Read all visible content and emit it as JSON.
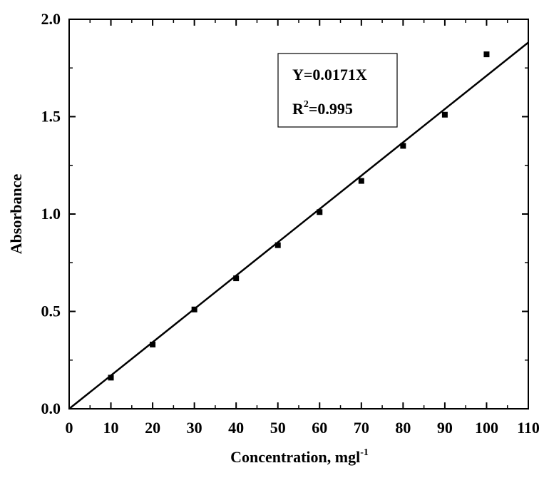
{
  "chart_data": {
    "type": "scatter",
    "x_label": "Concentration, mgl",
    "x_label_sup": "-1",
    "y_label": "Absorbance",
    "annotation_line1": "Y=0.0171X",
    "annotation_line2_base": "R",
    "annotation_line2_sup": "2",
    "annotation_line2_rest": "=0.995",
    "fit_slope": 0.0171,
    "x": [
      10,
      20,
      30,
      40,
      50,
      60,
      70,
      80,
      90,
      100
    ],
    "values": [
      0.16,
      0.33,
      0.51,
      0.67,
      0.84,
      1.01,
      1.17,
      1.35,
      1.51,
      1.82
    ],
    "color": "#000000",
    "xlim": [
      0,
      110
    ],
    "xticks": [
      0,
      10,
      20,
      30,
      40,
      50,
      60,
      70,
      80,
      90,
      100,
      110
    ],
    "ylim": [
      0,
      2.0
    ],
    "yticks": [
      {
        "value": 0,
        "label": "0.0"
      },
      0.5,
      {
        "value": 1.0,
        "label": "1.0"
      },
      1.5,
      {
        "value": 2.0,
        "label": "2.0"
      }
    ]
  }
}
